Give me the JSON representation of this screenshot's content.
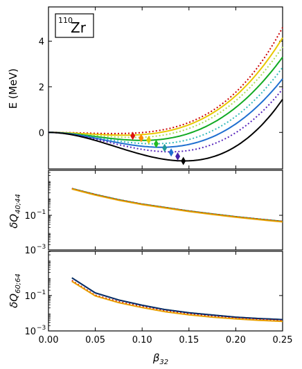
{
  "figure": {
    "x_axis_label": "β",
    "x_axis_label_sub": "32",
    "x_ticks": [
      "0.00",
      "0.05",
      "0.10",
      "0.15",
      "0.20",
      "0.25"
    ]
  },
  "chart_data": [
    {
      "type": "line",
      "panel": "top",
      "annotation": {
        "mass_number": "110",
        "element": "Zr"
      },
      "ylabel": "E (MeV)",
      "xlim": [
        0.0,
        0.25
      ],
      "ylim": [
        -1.6,
        5.5
      ],
      "yticks": [
        0,
        2,
        4
      ],
      "ytick_labels": [
        "0",
        "2",
        "4"
      ],
      "series": [
        {
          "color": "#cc0000",
          "dash": true,
          "min": [
            0.07,
            -0.05
          ],
          "end": 4.6
        },
        {
          "color": "#e8c800",
          "dash": false,
          "min": [
            0.08,
            -0.12
          ],
          "end": 4.15
        },
        {
          "color": "#aadd55",
          "dash": true,
          "min": [
            0.09,
            -0.22
          ],
          "end": 3.75
        },
        {
          "color": "#11aa22",
          "dash": false,
          "min": [
            0.1,
            -0.35
          ],
          "end": 3.3
        },
        {
          "color": "#33bbbb",
          "dash": true,
          "min": [
            0.112,
            -0.5
          ],
          "end": 2.85
        },
        {
          "color": "#1e6fd0",
          "dash": false,
          "min": [
            0.12,
            -0.65
          ],
          "end": 2.35
        },
        {
          "color": "#5522bb",
          "dash": true,
          "min": [
            0.13,
            -0.85
          ],
          "end": 1.9
        },
        {
          "color": "#000000",
          "dash": false,
          "min": [
            0.145,
            -1.25
          ],
          "end": 1.45
        }
      ],
      "markers": [
        {
          "x": 0.09,
          "y": -0.15,
          "color": "#dd1111"
        },
        {
          "x": 0.099,
          "y": -0.25,
          "color": "#ff8800"
        },
        {
          "x": 0.107,
          "y": -0.33,
          "color": "#ddcc00"
        },
        {
          "x": 0.115,
          "y": -0.5,
          "color": "#22bb22"
        },
        {
          "x": 0.124,
          "y": -0.68,
          "color": "#229999"
        },
        {
          "x": 0.131,
          "y": -0.88,
          "color": "#1e6fd0"
        },
        {
          "x": 0.138,
          "y": -1.05,
          "color": "#4422aa"
        },
        {
          "x": 0.144,
          "y": -1.25,
          "color": "#000000"
        }
      ]
    },
    {
      "type": "line",
      "panel": "middle",
      "ylabel": "δQ",
      "ylabel_sub": "40;44",
      "log_y": true,
      "xlim": [
        0.0,
        0.25
      ],
      "ylim_exp": [
        -3,
        1.6
      ],
      "ytick_exps": [
        -1,
        -3
      ],
      "ytick_labels": [
        "10",
        "10"
      ],
      "ytick_sups": [
        "−1",
        "−3"
      ],
      "x": [
        0.025,
        0.05,
        0.075,
        0.1,
        0.125,
        0.15,
        0.175,
        0.2,
        0.225,
        0.25
      ],
      "series": [
        {
          "color": "#1a8a4a",
          "dash": false,
          "values_exp": [
            0.55,
            0.2,
            -0.1,
            -0.35,
            -0.55,
            -0.75,
            -0.92,
            -1.08,
            -1.22,
            -1.35
          ]
        },
        {
          "color": "#cc0000",
          "dash": true,
          "values_exp": [
            0.55,
            0.2,
            -0.1,
            -0.35,
            -0.55,
            -0.75,
            -0.92,
            -1.08,
            -1.22,
            -1.35
          ]
        },
        {
          "color": "#e8a000",
          "dash": false,
          "values_exp": [
            0.52,
            0.17,
            -0.13,
            -0.38,
            -0.58,
            -0.78,
            -0.95,
            -1.11,
            -1.25,
            -1.38
          ]
        }
      ]
    },
    {
      "type": "line",
      "panel": "bottom",
      "ylabel": "δQ",
      "ylabel_sub": "60;64",
      "log_y": true,
      "xlim": [
        0.0,
        0.25
      ],
      "ylim_exp": [
        -3,
        1.5
      ],
      "ytick_exps": [
        -1,
        -3
      ],
      "ytick_labels": [
        "10",
        "10"
      ],
      "ytick_sups": [
        "−1",
        "−3"
      ],
      "x": [
        0.025,
        0.05,
        0.075,
        0.1,
        0.125,
        0.15,
        0.175,
        0.2,
        0.225,
        0.25
      ],
      "series": [
        {
          "color": "#1a8a4a",
          "dash": false,
          "values_exp": [
            0.0,
            -0.85,
            -1.25,
            -1.55,
            -1.8,
            -1.97,
            -2.1,
            -2.22,
            -2.3,
            -2.36
          ]
        },
        {
          "color": "#0a2a6a",
          "dash": false,
          "values_exp": [
            0.0,
            -0.85,
            -1.25,
            -1.55,
            -1.8,
            -1.97,
            -2.1,
            -2.22,
            -2.3,
            -2.36
          ]
        },
        {
          "color": "#cc0000",
          "dash": true,
          "values_exp": [
            -0.15,
            -0.98,
            -1.35,
            -1.63,
            -1.88,
            -2.05,
            -2.18,
            -2.28,
            -2.36,
            -2.42
          ]
        },
        {
          "color": "#e8a000",
          "dash": false,
          "values_exp": [
            -0.2,
            -1.02,
            -1.4,
            -1.68,
            -1.92,
            -2.09,
            -2.22,
            -2.32,
            -2.4,
            -2.46
          ]
        }
      ]
    }
  ]
}
